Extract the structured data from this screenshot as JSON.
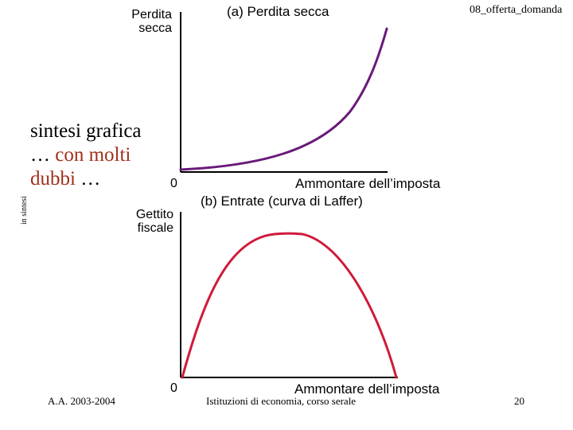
{
  "header": {
    "top_right": "08_offerta_domanda",
    "side_label": "in sintesi"
  },
  "intro": {
    "line1": "sintesi grafica",
    "line2_prefix": "… ",
    "line2_highlight": "con molti",
    "line3_highlight": "dubbi",
    "line3_suffix": " …"
  },
  "chart_data": [
    {
      "type": "line",
      "title": "(a) Perdita secca",
      "ylabel": "Perdita secca",
      "xlabel": "Ammontare dell’imposta",
      "origin_label": "0",
      "series": [
        {
          "color": "#6a1a7a",
          "shape": "convex-increasing (exponential-like)"
        }
      ]
    },
    {
      "type": "line",
      "title": "(b) Entrate (curva di Laffer)",
      "ylabel": "Gettito fiscale",
      "xlabel": "Ammontare dell’imposta",
      "origin_label": "0",
      "series": [
        {
          "color": "#d01a3a",
          "shape": "inverted-U (Laffer curve)"
        }
      ]
    }
  ],
  "labels": {
    "a_ylabel_line1": "Perdita",
    "a_ylabel_line2": "secca",
    "b_ylabel_line1": "Gettito",
    "b_ylabel_line2": "fiscale"
  },
  "footer": {
    "left": "A.A. 2003-2004",
    "center": "Istituzioni di economia, corso serale",
    "page_number": "20"
  },
  "colors": {
    "axis": "#000000",
    "curve_a": "#6a1a7a",
    "curve_b": "#d01a3a",
    "accent_text": "#a0301a"
  }
}
